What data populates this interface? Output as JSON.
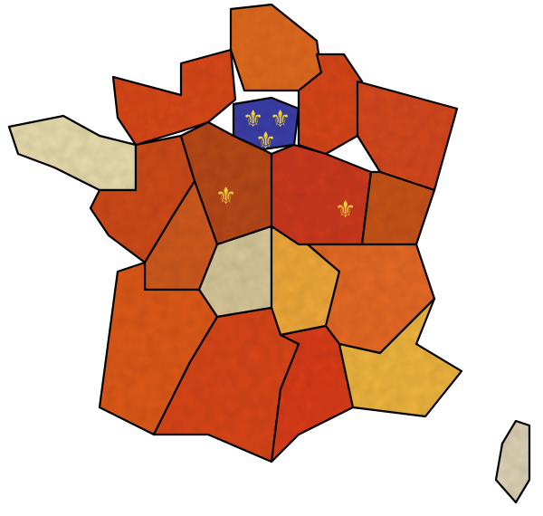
{
  "map": {
    "highlighted_region_color": "#3d3fa8",
    "emblem_color": "#f2d23a",
    "outline_color": "#111111",
    "background": "#ffffff",
    "fleur_glyph": "⚜",
    "region_colors": {
      "brittany": "#e8dcae",
      "normandy": "#d9481c",
      "nord": "#e06a22",
      "ile_de_france": "#3d3fa8",
      "champagne": "#d8471f",
      "lorraine_alsace": "#d64a20",
      "pays_de_loire": "#cf4b1d",
      "centre": "#b84a1f",
      "burgundy": "#cc3b22",
      "franche_comte": "#c8541f",
      "poitou": "#d05a20",
      "limousin": "#d8c79a",
      "auvergne": "#f0a93a",
      "rhone_alpes": "#e66a25",
      "aquitaine": "#de5a1e",
      "midi_pyrenees": "#d9461c",
      "languedoc": "#d93d1f",
      "paca": "#efb540",
      "corsica": "#ddd2b5"
    }
  }
}
